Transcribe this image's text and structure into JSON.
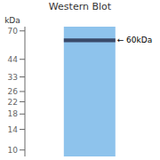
{
  "chart_data": {
    "type": "bar",
    "title": "Western Blot",
    "categories": [
      null
    ],
    "values": [
      [
        58.2,
        61.8
      ]
    ],
    "color": "#3a4a6a",
    "log": "y",
    "ylim": [
      9,
      75
    ],
    "yticks": [
      70,
      44,
      33,
      26,
      22,
      18,
      14,
      10
    ],
    "ylabel": "kDa",
    "annotations": [
      {
        "text": "← 60kDa",
        "y": 60
      }
    ],
    "grid": false,
    "tick_labels": "y"
  }
}
